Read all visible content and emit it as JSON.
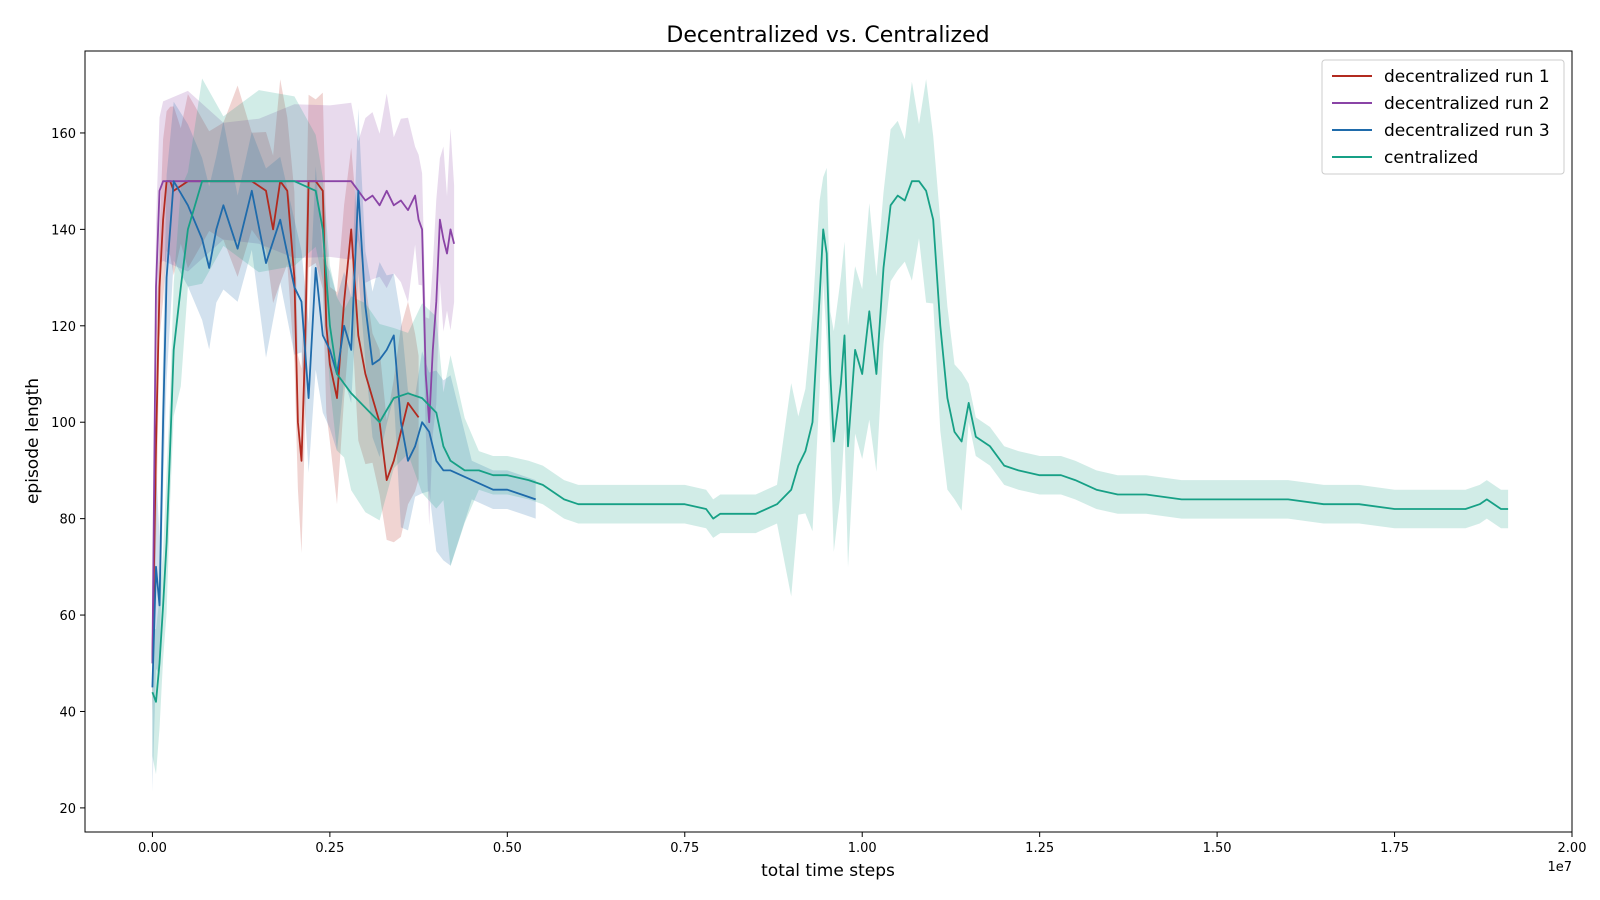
{
  "chart_data": {
    "type": "line",
    "title": "Decentralized vs. Centralized",
    "xlabel": "total time steps",
    "ylabel": "episode length",
    "x_offset_label": "1e7",
    "xlim": [
      -0.095,
      2.0
    ],
    "ylim": [
      15,
      177
    ],
    "x_ticks": [
      0.0,
      0.25,
      0.5,
      0.75,
      1.0,
      1.25,
      1.5,
      1.75,
      2.0
    ],
    "x_tick_labels": [
      "0.00",
      "0.25",
      "0.50",
      "0.75",
      "1.00",
      "1.25",
      "1.50",
      "1.75",
      "2.00"
    ],
    "y_ticks": [
      20,
      40,
      60,
      80,
      100,
      120,
      140,
      160
    ],
    "y_tick_labels": [
      "20",
      "40",
      "60",
      "80",
      "100",
      "120",
      "140",
      "160"
    ],
    "grid": false,
    "legend_position": "top-right",
    "series": [
      {
        "name": "decentralized run 1",
        "color": "#b22a1f",
        "x": [
          0.0,
          0.005,
          0.01,
          0.015,
          0.02,
          0.025,
          0.03,
          0.04,
          0.05,
          0.06,
          0.08,
          0.1,
          0.12,
          0.14,
          0.16,
          0.17,
          0.18,
          0.19,
          0.2,
          0.205,
          0.21,
          0.215,
          0.22,
          0.23,
          0.24,
          0.245,
          0.25,
          0.26,
          0.27,
          0.28,
          0.29,
          0.3,
          0.31,
          0.32,
          0.33,
          0.34,
          0.35,
          0.36,
          0.37,
          0.375
        ],
        "y": [
          50,
          95,
          128,
          142,
          150,
          150,
          148,
          149,
          150,
          150,
          150,
          150,
          150,
          150,
          148,
          140,
          150,
          148,
          130,
          100,
          92,
          115,
          150,
          150,
          148,
          120,
          112,
          105,
          125,
          140,
          118,
          110,
          105,
          100,
          88,
          92,
          98,
          104,
          102,
          101
        ]
      },
      {
        "name": "decentralized run 2",
        "color": "#8a44a6",
        "x": [
          0.0,
          0.005,
          0.01,
          0.015,
          0.05,
          0.1,
          0.15,
          0.2,
          0.25,
          0.28,
          0.29,
          0.3,
          0.31,
          0.32,
          0.33,
          0.34,
          0.35,
          0.36,
          0.37,
          0.375,
          0.38,
          0.385,
          0.39,
          0.395,
          0.4,
          0.405,
          0.41,
          0.415,
          0.42,
          0.425
        ],
        "y": [
          50,
          128,
          148,
          150,
          150,
          150,
          150,
          150,
          150,
          150,
          148,
          146,
          147,
          145,
          148,
          145,
          146,
          144,
          147,
          142,
          140,
          110,
          100,
          115,
          125,
          142,
          138,
          135,
          140,
          137
        ]
      },
      {
        "name": "decentralized run 3",
        "color": "#1f6bab",
        "x": [
          0.0,
          0.005,
          0.01,
          0.015,
          0.02,
          0.03,
          0.05,
          0.07,
          0.08,
          0.09,
          0.1,
          0.12,
          0.14,
          0.16,
          0.18,
          0.2,
          0.21,
          0.22,
          0.23,
          0.24,
          0.25,
          0.26,
          0.27,
          0.28,
          0.29,
          0.3,
          0.31,
          0.32,
          0.33,
          0.34,
          0.35,
          0.36,
          0.37,
          0.38,
          0.39,
          0.4,
          0.41,
          0.42,
          0.45,
          0.48,
          0.5,
          0.52,
          0.54
        ],
        "y": [
          45,
          70,
          62,
          100,
          130,
          150,
          145,
          138,
          132,
          140,
          145,
          136,
          148,
          133,
          142,
          128,
          125,
          105,
          132,
          118,
          115,
          110,
          120,
          115,
          148,
          124,
          112,
          113,
          115,
          118,
          100,
          92,
          95,
          100,
          98,
          92,
          90,
          90,
          88,
          86,
          86,
          85,
          84
        ]
      },
      {
        "name": "centralized",
        "color": "#17a086",
        "x": [
          0.0,
          0.005,
          0.01,
          0.015,
          0.02,
          0.025,
          0.03,
          0.04,
          0.05,
          0.07,
          0.1,
          0.15,
          0.2,
          0.23,
          0.24,
          0.25,
          0.26,
          0.27,
          0.28,
          0.3,
          0.32,
          0.34,
          0.36,
          0.38,
          0.4,
          0.41,
          0.42,
          0.44,
          0.46,
          0.48,
          0.5,
          0.53,
          0.55,
          0.58,
          0.6,
          0.65,
          0.7,
          0.75,
          0.78,
          0.79,
          0.8,
          0.85,
          0.88,
          0.9,
          0.91,
          0.92,
          0.93,
          0.94,
          0.945,
          0.95,
          0.955,
          0.96,
          0.97,
          0.975,
          0.98,
          0.99,
          1.0,
          1.01,
          1.02,
          1.03,
          1.04,
          1.05,
          1.06,
          1.07,
          1.08,
          1.09,
          1.1,
          1.11,
          1.12,
          1.13,
          1.14,
          1.15,
          1.16,
          1.18,
          1.2,
          1.22,
          1.25,
          1.28,
          1.3,
          1.33,
          1.36,
          1.4,
          1.45,
          1.5,
          1.55,
          1.6,
          1.65,
          1.7,
          1.75,
          1.8,
          1.83,
          1.85,
          1.87,
          1.88,
          1.9,
          1.91
        ],
        "y": [
          44,
          42,
          50,
          62,
          75,
          95,
          115,
          128,
          140,
          150,
          150,
          150,
          150,
          148,
          140,
          120,
          110,
          108,
          106,
          103,
          100,
          105,
          106,
          105,
          102,
          95,
          92,
          90,
          90,
          89,
          89,
          88,
          87,
          84,
          83,
          83,
          83,
          83,
          82,
          80,
          81,
          81,
          83,
          86,
          91,
          94,
          100,
          126,
          140,
          135,
          110,
          96,
          108,
          118,
          95,
          115,
          110,
          123,
          110,
          132,
          145,
          147,
          146,
          150,
          150,
          148,
          142,
          120,
          105,
          98,
          96,
          104,
          97,
          95,
          91,
          90,
          89,
          89,
          88,
          86,
          85,
          85,
          84,
          84,
          84,
          84,
          83,
          83,
          82,
          82,
          82,
          82,
          83,
          84,
          82,
          82
        ]
      }
    ]
  }
}
